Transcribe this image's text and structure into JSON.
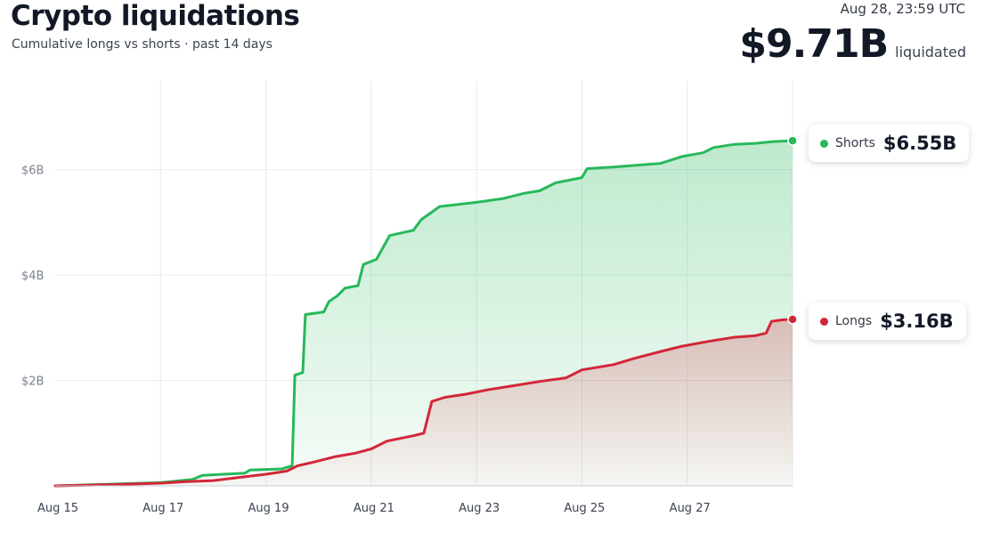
{
  "header": {
    "title": "Crypto liquidations",
    "subtitle": "Cumulative longs vs shorts · past 14 days",
    "timestamp": "Aug 28, 23:59 UTC",
    "total_value": "$9.71B",
    "total_suffix": "liquidated"
  },
  "colors": {
    "shorts": "#27b85a",
    "longs": "#d3263a",
    "grid": "#e9ebef",
    "axis": "#c9cdd4"
  },
  "callouts": {
    "shorts": {
      "label": "Shorts",
      "value": "$6.55B"
    },
    "longs": {
      "label": "Longs",
      "value": "$3.16B"
    }
  },
  "chart_data": {
    "type": "area",
    "x_unit": "day (Aug 15 = 15)",
    "xlim": [
      15,
      29
    ],
    "ylim": [
      0,
      7.7
    ],
    "y_unit": "billions USD",
    "grid": true,
    "x_ticks": [
      {
        "value": 15,
        "label": "Aug 15"
      },
      {
        "value": 17,
        "label": "Aug 17"
      },
      {
        "value": 19,
        "label": "Aug 19"
      },
      {
        "value": 21,
        "label": "Aug 21"
      },
      {
        "value": 23,
        "label": "Aug 23"
      },
      {
        "value": 25,
        "label": "Aug 25"
      },
      {
        "value": 27,
        "label": "Aug 27"
      }
    ],
    "y_ticks": [
      {
        "value": 2,
        "label": "$2B"
      },
      {
        "value": 4,
        "label": "$4B"
      },
      {
        "value": 6,
        "label": "$6B"
      }
    ],
    "series": [
      {
        "name": "Shorts",
        "key": "shorts",
        "points": [
          [
            15.0,
            0.0
          ],
          [
            16.0,
            0.03
          ],
          [
            17.0,
            0.06
          ],
          [
            17.6,
            0.12
          ],
          [
            17.8,
            0.2
          ],
          [
            18.6,
            0.24
          ],
          [
            18.7,
            0.3
          ],
          [
            19.3,
            0.32
          ],
          [
            19.5,
            0.38
          ],
          [
            19.55,
            2.1
          ],
          [
            19.7,
            2.15
          ],
          [
            19.75,
            3.25
          ],
          [
            20.1,
            3.3
          ],
          [
            20.2,
            3.5
          ],
          [
            20.35,
            3.6
          ],
          [
            20.5,
            3.75
          ],
          [
            20.75,
            3.8
          ],
          [
            20.85,
            4.2
          ],
          [
            21.1,
            4.3
          ],
          [
            21.35,
            4.75
          ],
          [
            21.8,
            4.85
          ],
          [
            21.95,
            5.05
          ],
          [
            22.3,
            5.3
          ],
          [
            23.0,
            5.38
          ],
          [
            23.5,
            5.45
          ],
          [
            23.9,
            5.55
          ],
          [
            24.2,
            5.6
          ],
          [
            24.5,
            5.75
          ],
          [
            25.0,
            5.85
          ],
          [
            25.1,
            6.02
          ],
          [
            25.6,
            6.05
          ],
          [
            26.0,
            6.08
          ],
          [
            26.5,
            6.12
          ],
          [
            26.9,
            6.25
          ],
          [
            27.3,
            6.32
          ],
          [
            27.5,
            6.42
          ],
          [
            27.9,
            6.48
          ],
          [
            28.3,
            6.5
          ],
          [
            28.6,
            6.53
          ],
          [
            29.0,
            6.55
          ]
        ]
      },
      {
        "name": "Longs",
        "key": "longs",
        "points": [
          [
            15.0,
            0.0
          ],
          [
            16.0,
            0.02
          ],
          [
            17.0,
            0.05
          ],
          [
            17.5,
            0.08
          ],
          [
            18.0,
            0.1
          ],
          [
            18.5,
            0.16
          ],
          [
            19.0,
            0.22
          ],
          [
            19.4,
            0.28
          ],
          [
            19.6,
            0.38
          ],
          [
            19.9,
            0.45
          ],
          [
            20.3,
            0.55
          ],
          [
            20.7,
            0.62
          ],
          [
            21.0,
            0.7
          ],
          [
            21.3,
            0.85
          ],
          [
            21.8,
            0.95
          ],
          [
            22.0,
            1.0
          ],
          [
            22.15,
            1.6
          ],
          [
            22.4,
            1.68
          ],
          [
            22.8,
            1.74
          ],
          [
            23.2,
            1.82
          ],
          [
            23.7,
            1.9
          ],
          [
            24.2,
            1.98
          ],
          [
            24.7,
            2.05
          ],
          [
            25.0,
            2.2
          ],
          [
            25.6,
            2.3
          ],
          [
            26.0,
            2.42
          ],
          [
            26.5,
            2.55
          ],
          [
            26.9,
            2.65
          ],
          [
            27.4,
            2.74
          ],
          [
            27.9,
            2.82
          ],
          [
            28.3,
            2.85
          ],
          [
            28.5,
            2.9
          ],
          [
            28.6,
            3.12
          ],
          [
            28.8,
            3.15
          ],
          [
            29.0,
            3.16
          ]
        ]
      }
    ]
  }
}
